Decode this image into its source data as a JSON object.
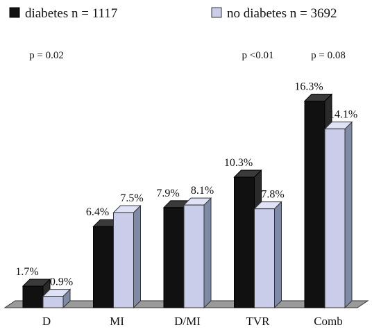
{
  "chart_data": {
    "type": "bar",
    "title": "",
    "xlabel": "",
    "ylabel": "",
    "ylim": [
      0,
      18
    ],
    "grid": false,
    "legend_position": "top",
    "categories": [
      "D",
      "MI",
      "D/MI",
      "TVR",
      "Comb"
    ],
    "series": [
      {
        "name": "diabetes n = 1117",
        "color": "#111111",
        "values": [
          1.7,
          6.4,
          7.9,
          10.3,
          16.3
        ],
        "labels": [
          "1.7%",
          "6.4%",
          "7.9%",
          "10.3%",
          "16.3%"
        ]
      },
      {
        "name": "no diabetes n = 3692",
        "color": "#c9cdea",
        "values": [
          0.9,
          7.5,
          8.1,
          7.8,
          14.1
        ],
        "labels": [
          "0.9%",
          "7.5%",
          "8.1%",
          "7.8%",
          "14.1%"
        ]
      }
    ],
    "annotations": [
      {
        "category": "D",
        "text": "p = 0.02"
      },
      {
        "category": "TVR",
        "text": "p <0.01"
      },
      {
        "category": "Comb",
        "text": "p = 0.08"
      }
    ]
  }
}
